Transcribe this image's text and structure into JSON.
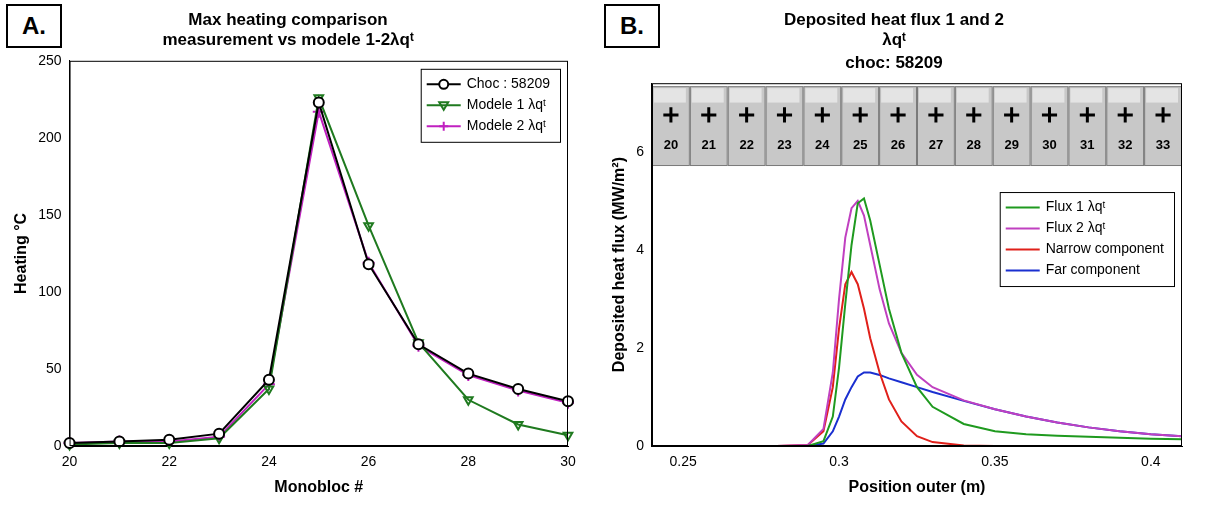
{
  "chart_data": [
    {
      "type": "line",
      "panel_label": "A.",
      "title": "Max heating comparison measurement vs modele 1-2λqᵗ",
      "x_label": "Monobloc #",
      "y_label": "Heating °C",
      "x": [
        20,
        21,
        22,
        23,
        24,
        25,
        26,
        27,
        28,
        29,
        30
      ],
      "series": [
        {
          "name": "Choc : 58209",
          "color": "#000000",
          "marker": "circle",
          "line_style": "solid",
          "values": [
            2,
            3,
            4,
            8,
            43,
            223,
            118,
            66,
            47,
            37,
            29
          ]
        },
        {
          "name": "Modele 1 λqᵗ",
          "color": "#1f7a1f",
          "marker": "triangle-down",
          "line_style": "solid",
          "values": [
            1,
            2,
            2,
            5,
            37,
            226,
            143,
            67,
            30,
            14,
            7
          ]
        },
        {
          "name": "Modele 2 λqᵗ",
          "color": "#c020c0",
          "marker": "plus",
          "line_style": "solid",
          "values": [
            2,
            3,
            3,
            6,
            40,
            217,
            119,
            65,
            46,
            36,
            28
          ]
        }
      ],
      "xlim": [
        20,
        30
      ],
      "xticks": [
        20,
        22,
        24,
        26,
        28,
        30
      ],
      "ylim": [
        0,
        250
      ],
      "yticks": [
        0,
        50,
        100,
        150,
        200,
        250
      ],
      "grid": false,
      "legend": "upper right"
    },
    {
      "type": "line",
      "panel_label": "B.",
      "title": "Deposited heat flux 1 and 2 λqᵗ",
      "subtitle": "choc: 58209",
      "x_label": "Position outer (m)",
      "y_label": "Deposited heat flux (MW/m²)",
      "strip_labels": [
        20,
        21,
        22,
        23,
        24,
        25,
        26,
        27,
        28,
        29,
        30,
        31,
        32,
        33
      ],
      "x": [
        0.24,
        0.28,
        0.29,
        0.295,
        0.298,
        0.3,
        0.302,
        0.304,
        0.306,
        0.308,
        0.31,
        0.313,
        0.316,
        0.32,
        0.325,
        0.33,
        0.34,
        0.35,
        0.36,
        0.37,
        0.38,
        0.39,
        0.4,
        0.41
      ],
      "series": [
        {
          "name": "Flux 1 λqᵗ",
          "color": "#1f9a1f",
          "line_style": "solid",
          "values": [
            0,
            0,
            0,
            0.1,
            0.6,
            1.6,
            2.9,
            4.1,
            4.95,
            5.05,
            4.6,
            3.7,
            2.8,
            1.9,
            1.2,
            0.8,
            0.45,
            0.3,
            0.24,
            0.21,
            0.19,
            0.17,
            0.15,
            0.14
          ]
        },
        {
          "name": "Flux 2 λqᵗ",
          "color": "#c040c0",
          "line_style": "solid",
          "values": [
            0,
            0,
            0.02,
            0.35,
            1.5,
            3.0,
            4.25,
            4.85,
            5.0,
            4.7,
            4.1,
            3.2,
            2.5,
            1.9,
            1.45,
            1.2,
            0.93,
            0.75,
            0.6,
            0.48,
            0.38,
            0.3,
            0.24,
            0.2
          ]
        },
        {
          "name": "Narrow component",
          "color": "#e0201a",
          "line_style": "solid",
          "values": [
            0,
            0,
            0.02,
            0.3,
            1.2,
            2.4,
            3.3,
            3.55,
            3.3,
            2.8,
            2.2,
            1.5,
            0.95,
            0.5,
            0.2,
            0.08,
            0.01,
            0,
            0,
            0,
            0,
            0,
            0,
            0
          ]
        },
        {
          "name": "Far component",
          "color": "#1a2fd0",
          "line_style": "solid",
          "values": [
            0,
            0,
            0,
            0.05,
            0.3,
            0.6,
            0.95,
            1.2,
            1.42,
            1.5,
            1.5,
            1.45,
            1.38,
            1.3,
            1.2,
            1.1,
            0.92,
            0.75,
            0.6,
            0.48,
            0.38,
            0.3,
            0.24,
            0.2
          ]
        }
      ],
      "xlim": [
        0.24,
        0.41
      ],
      "xticks": [
        0.25,
        0.3,
        0.35,
        0.4
      ],
      "ylim": [
        0,
        7.4
      ],
      "yticks": [
        0,
        2,
        4,
        6
      ],
      "grid": false,
      "legend": "right"
    }
  ]
}
